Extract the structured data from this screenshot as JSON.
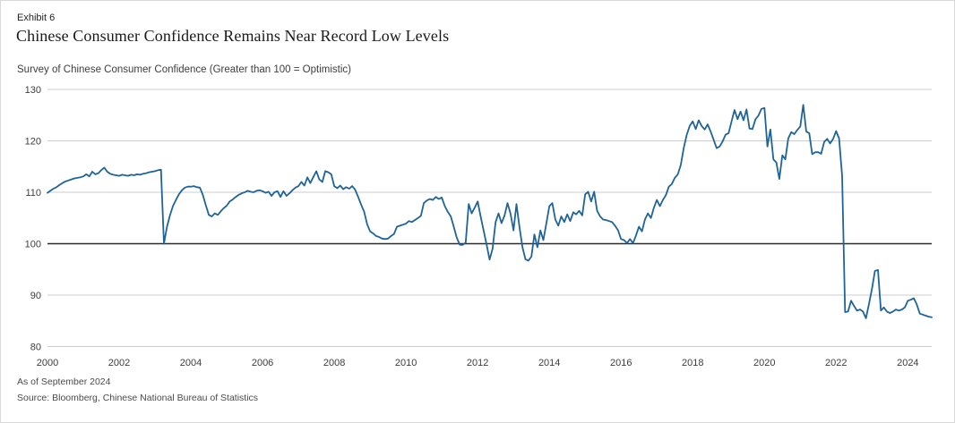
{
  "header": {
    "exhibit_label": "Exhibit 6",
    "title": "Chinese Consumer Confidence Remains Near Record Low Levels",
    "subtitle": "Survey of Chinese Consumer Confidence (Greater than 100 = Optimistic)"
  },
  "footer": {
    "as_of": "As of September 2024",
    "source": "Source: Bloomberg, Chinese National Bureau of Statistics"
  },
  "colors": {
    "line": "#1f6498",
    "grid": "#cccccc",
    "baseline": "#2b2b2b",
    "text": "#3d3d3d",
    "border": "#d9d9d9",
    "background": "#ffffff"
  },
  "chart_data": {
    "type": "line",
    "title": "Chinese Consumer Confidence Remains Near Record Low Levels",
    "subtitle": "Survey of Chinese Consumer Confidence (Greater than 100 = Optimistic)",
    "xlabel": "",
    "ylabel": "",
    "ylim": [
      80,
      130
    ],
    "y_ticks": [
      130,
      120,
      110,
      100,
      90,
      80
    ],
    "x_ticks": [
      2000,
      2002,
      2004,
      2006,
      2008,
      2010,
      2012,
      2014,
      2016,
      2018,
      2020,
      2022,
      2024
    ],
    "baseline_value": 100,
    "grid": true,
    "legend": false,
    "series": [
      {
        "name": "Survey of Chinese Consumer Confidence",
        "frequency": "monthly",
        "start": "2000-01",
        "end": "2024-09",
        "values": [
          109.9,
          110.3,
          110.7,
          111.0,
          111.4,
          111.8,
          112.1,
          112.3,
          112.5,
          112.7,
          112.8,
          112.9,
          113.1,
          113.5,
          113.1,
          114.0,
          113.5,
          113.7,
          114.3,
          114.8,
          114.0,
          113.6,
          113.4,
          113.3,
          113.2,
          113.4,
          113.3,
          113.2,
          113.4,
          113.3,
          113.5,
          113.4,
          113.6,
          113.7,
          113.9,
          114.0,
          114.1,
          114.3,
          114.4,
          100.0,
          103.3,
          105.5,
          107.3,
          108.5,
          109.6,
          110.4,
          110.9,
          111.1,
          111.1,
          111.2,
          111.0,
          110.9,
          109.5,
          107.5,
          105.6,
          105.3,
          105.9,
          105.6,
          106.3,
          106.9,
          107.4,
          108.2,
          108.6,
          109.1,
          109.5,
          109.8,
          110.0,
          110.3,
          110.1,
          110.0,
          110.3,
          110.4,
          110.2,
          109.9,
          110.1,
          109.3,
          110.0,
          110.2,
          109.1,
          110.2,
          109.3,
          109.8,
          110.4,
          110.9,
          111.2,
          112.0,
          111.3,
          112.9,
          111.8,
          113.0,
          114.1,
          112.5,
          112.0,
          114.1,
          113.9,
          113.5,
          111.2,
          110.8,
          111.3,
          110.6,
          111.0,
          110.7,
          111.2,
          110.5,
          109.1,
          107.6,
          106.2,
          103.8,
          102.4,
          102.0,
          101.5,
          101.3,
          101.0,
          100.9,
          101.0,
          101.5,
          101.9,
          103.3,
          103.5,
          103.7,
          103.9,
          104.4,
          104.2,
          104.6,
          105.0,
          105.4,
          107.9,
          108.4,
          108.7,
          108.5,
          109.1,
          108.7,
          109.0,
          107.3,
          106.2,
          105.3,
          103.3,
          101.2,
          99.8,
          99.8,
          100.2,
          107.7,
          105.9,
          107.0,
          108.2,
          105.3,
          102.6,
          99.8,
          96.9,
          99.0,
          104.2,
          105.9,
          104.0,
          105.5,
          107.9,
          105.9,
          102.6,
          107.7,
          103.3,
          99.3,
          97.0,
          96.7,
          97.5,
          101.8,
          99.3,
          102.6,
          100.7,
          104.0,
          107.3,
          107.9,
          104.7,
          103.5,
          105.3,
          104.2,
          105.7,
          104.4,
          106.1,
          105.7,
          106.4,
          105.5,
          109.6,
          110.1,
          108.2,
          110.1,
          106.4,
          105.3,
          104.7,
          104.6,
          104.4,
          104.2,
          103.5,
          102.6,
          100.9,
          100.7,
          100.1,
          100.9,
          100.1,
          101.6,
          103.3,
          102.4,
          104.7,
          105.9,
          105.0,
          107.0,
          108.5,
          107.3,
          108.5,
          109.4,
          111.1,
          111.6,
          112.8,
          113.5,
          115.3,
          118.6,
          121.2,
          122.9,
          123.8,
          122.3,
          124.0,
          122.9,
          122.2,
          123.2,
          121.8,
          120.2,
          118.6,
          118.9,
          119.9,
          121.2,
          121.5,
          123.8,
          126.0,
          124.2,
          125.7,
          124.0,
          126.1,
          122.4,
          122.3,
          124.2,
          124.9,
          126.2,
          126.4,
          118.9,
          122.2,
          116.4,
          115.8,
          112.6,
          117.2,
          116.4,
          120.5,
          121.7,
          121.3,
          122.1,
          122.8,
          127.0,
          121.8,
          121.5,
          117.4,
          117.8,
          117.8,
          117.5,
          119.8,
          120.4,
          119.5,
          120.4,
          121.9,
          120.5,
          113.2,
          86.7,
          86.8,
          88.9,
          87.9,
          87.0,
          87.2,
          86.8,
          85.5,
          88.3,
          91.2,
          94.7,
          94.9,
          87.0,
          87.6,
          86.8,
          86.5,
          86.8,
          87.2,
          87.0,
          87.2,
          87.6,
          88.9,
          89.1,
          89.4,
          88.2,
          86.4,
          86.2,
          86.0,
          85.8,
          85.7
        ]
      }
    ]
  }
}
